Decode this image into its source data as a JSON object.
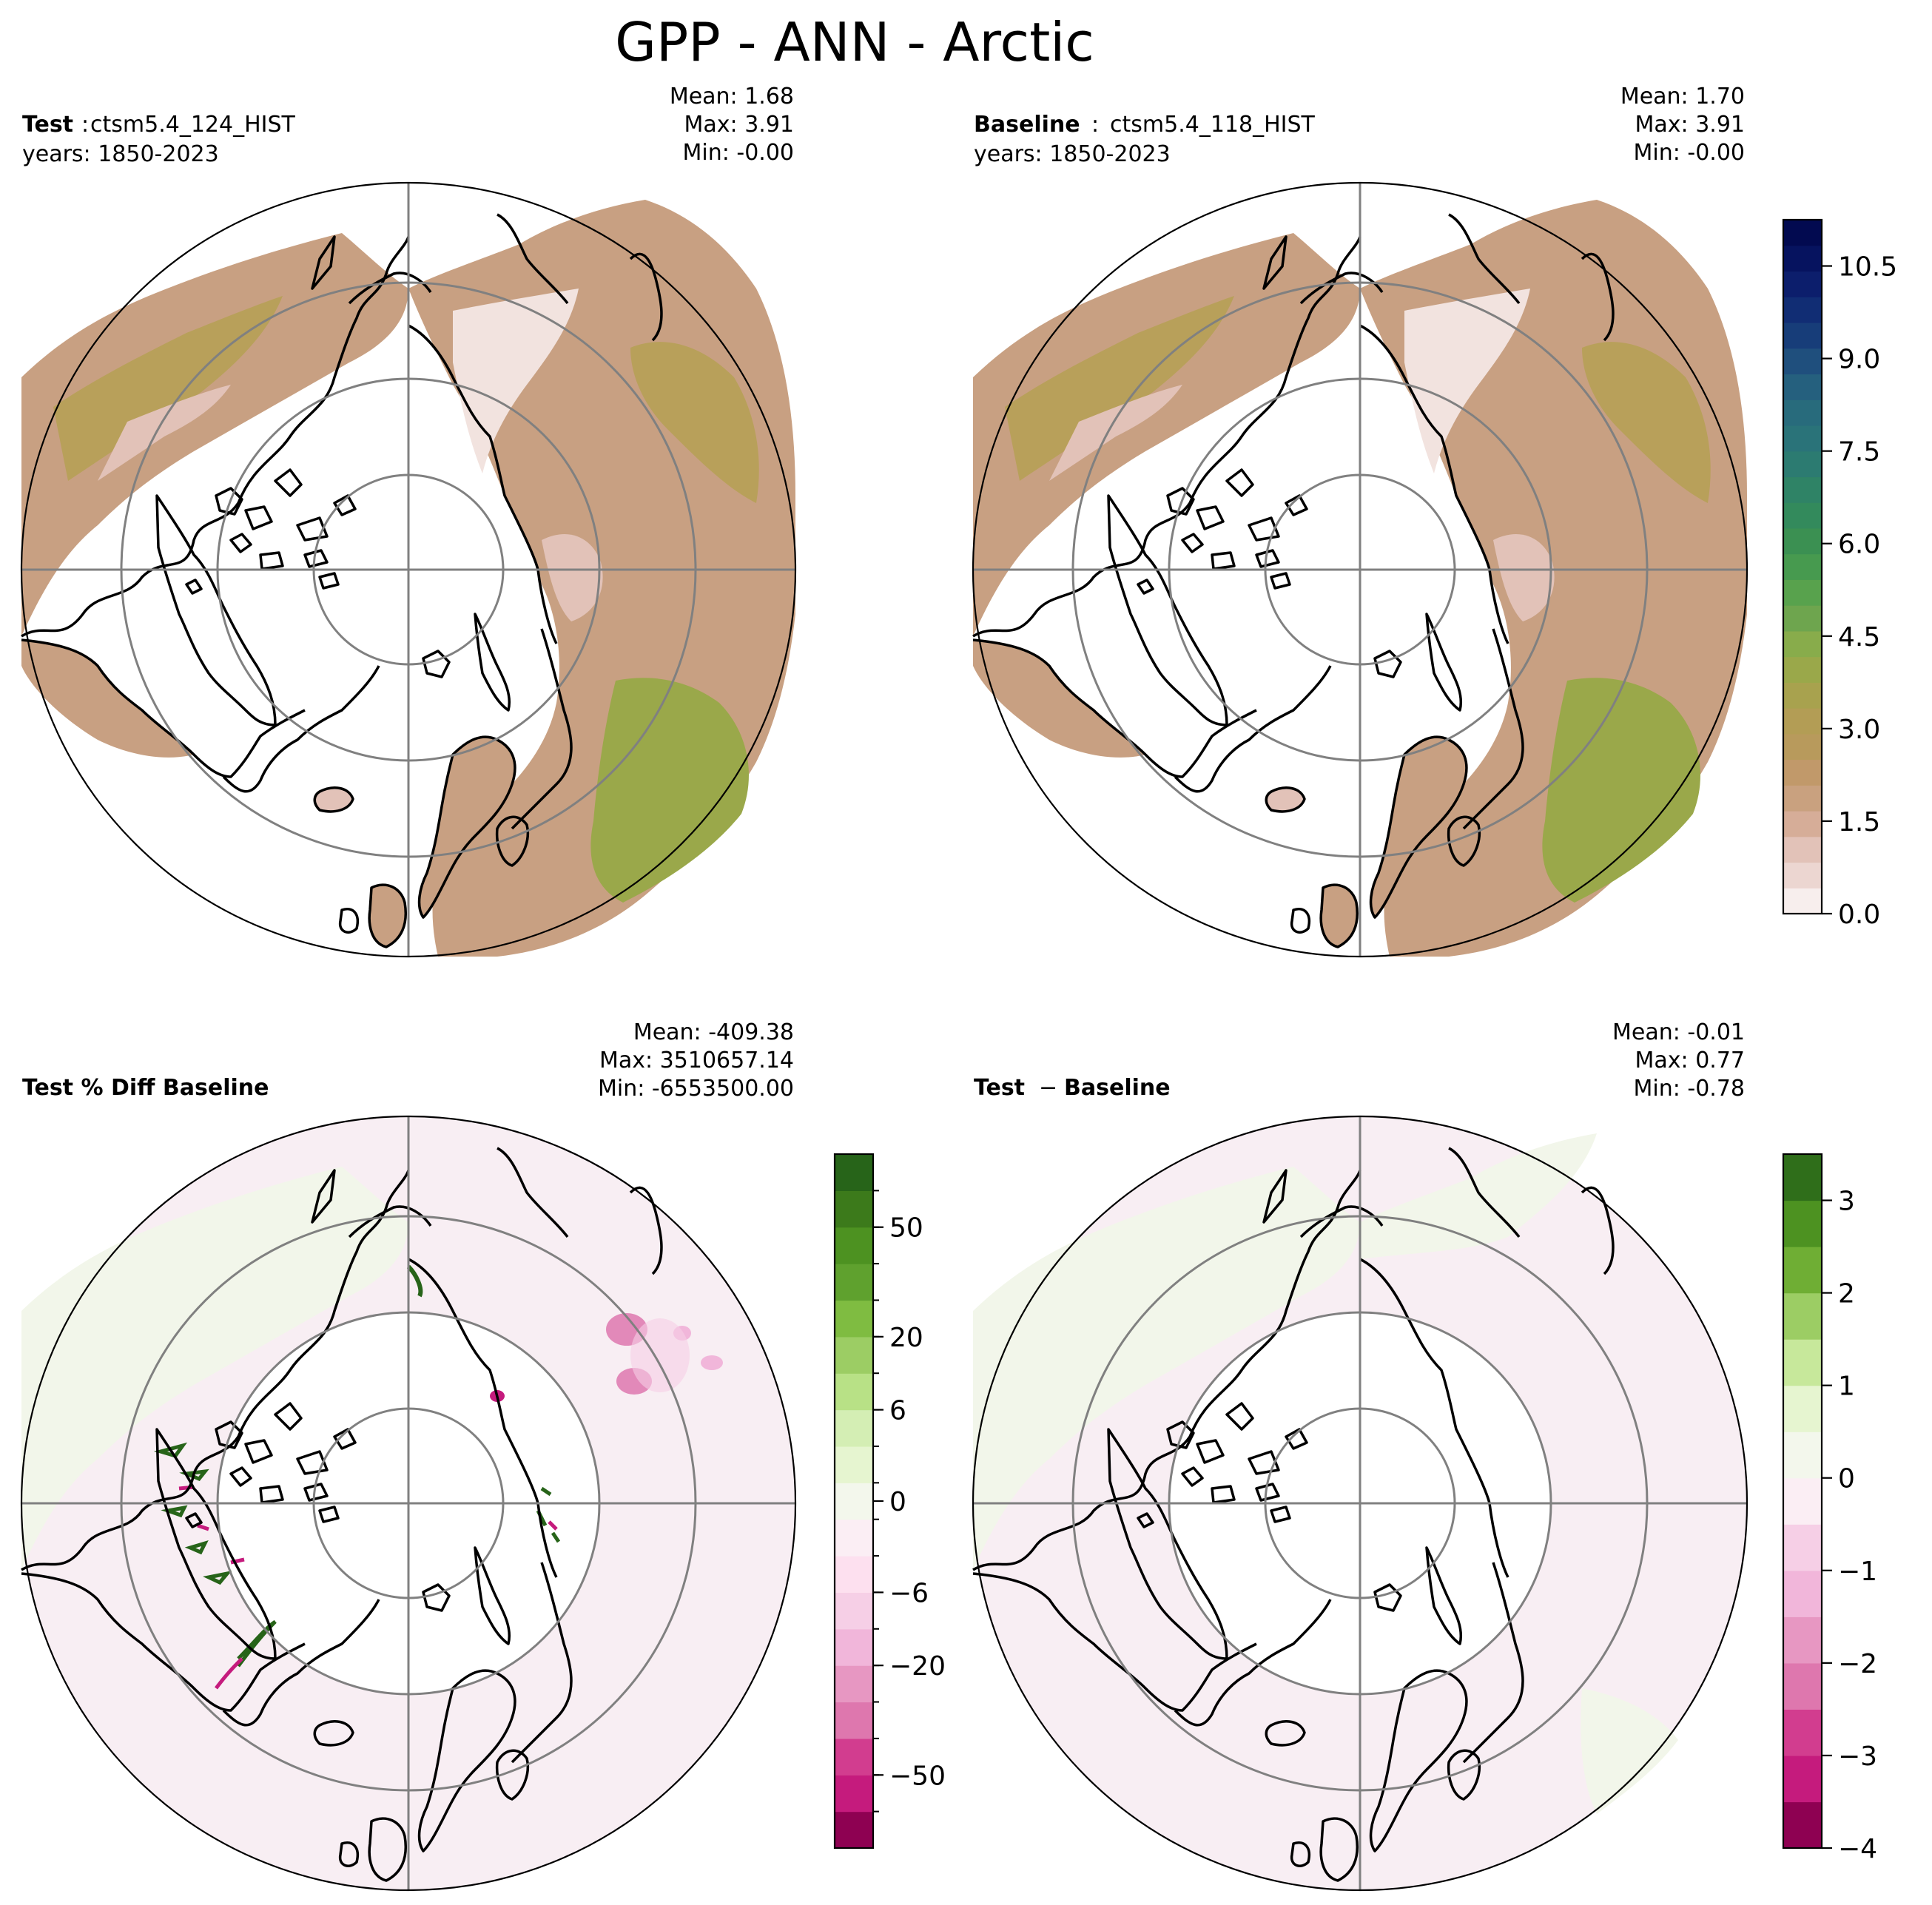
{
  "figure": {
    "title": "GPP - ANN - Arctic"
  },
  "panels": {
    "test": {
      "label": "Test",
      "separator": ":",
      "case": "ctsm5.4_124_HIST",
      "years": "years: 1850-2023",
      "mean": "Mean:  1.68",
      "max": "Max:  3.91",
      "min": "Min: -0.00"
    },
    "baseline": {
      "label": "Baseline",
      "separator": ":",
      "case": "ctsm5.4_118_HIST",
      "years": "years: 1850-2023",
      "mean": "Mean:  1.70",
      "max": "Max:  3.91",
      "min": "Min: -0.00"
    },
    "pct_diff": {
      "label": "Test % Diff Baseline",
      "mean": "Mean: -409.38",
      "max": "Max: 3510657.14",
      "min": "Min: -6553500.00"
    },
    "diff": {
      "label_a": "Test",
      "label_op": "−",
      "label_b": "Baseline",
      "mean": "Mean: -0.01",
      "max": "Max:  0.77",
      "min": "Min: -0.78"
    }
  },
  "colorbars": {
    "main": {
      "colormap": "tropical (white - brown - olive - green - teal - navy)",
      "range": [
        0,
        11.25
      ],
      "ticks": [
        "0.0",
        "1.5",
        "3.0",
        "4.5",
        "6.0",
        "7.5",
        "9.0",
        "10.5"
      ],
      "colors": [
        "#f7eeed",
        "#ecd6d1",
        "#e2c2b8",
        "#d6ad98",
        "#c9a17f",
        "#c1996a",
        "#b89a5c",
        "#b39d55",
        "#a8a24e",
        "#9aa84a",
        "#88ac4b",
        "#6ea54e",
        "#58a24d",
        "#479a4f",
        "#3b9052",
        "#338a5c",
        "#2f8366",
        "#2c7b71",
        "#2a7379",
        "#286b7c",
        "#25607e",
        "#1f4f7d",
        "#173d79",
        "#112d74",
        "#0c1e6c",
        "#06135f",
        "#020a50"
      ]
    },
    "pct": {
      "colormap": "PiYG diverging",
      "ticks": [
        "50",
        "20",
        "6",
        "0",
        "−6",
        "−20",
        "−50"
      ],
      "colors_bottom_to_top": [
        "#8e0152",
        "#c51b7d",
        "#d23d8f",
        "#de77ae",
        "#e797c2",
        "#f1b6da",
        "#f6cfe6",
        "#fde0ef",
        "#fbeef4",
        "#f3f7ec",
        "#e6f5d0",
        "#d4eeb4",
        "#b8e186",
        "#9ccd64",
        "#7fbc41",
        "#5fa12e",
        "#4d9221",
        "#3c7a1b",
        "#276419"
      ]
    },
    "diff": {
      "colormap": "PiYG diverging",
      "range": [
        -4,
        3.5
      ],
      "ticks": [
        "3",
        "2",
        "1",
        "0",
        "−1",
        "−2",
        "−3",
        "−4"
      ],
      "colors_bottom_to_top": [
        "#8e0152",
        "#c51b7d",
        "#d23d8f",
        "#de77ae",
        "#e797c2",
        "#f1b6da",
        "#f6cfe6",
        "#fbeef4",
        "#f3f7ec",
        "#e6f5d0",
        "#c7e89b",
        "#9ccd64",
        "#6fae34",
        "#4d9221",
        "#2f6e1a"
      ]
    }
  },
  "map_colors": {
    "ocean": "#ffffff",
    "land_low": "#f2e3df",
    "land_mid": "#c8a082",
    "land_high": "#b8a05a",
    "land_green": "#9aa84a",
    "diff_background": "#f8eef3",
    "diff_land_green": "#f2f6ea"
  }
}
